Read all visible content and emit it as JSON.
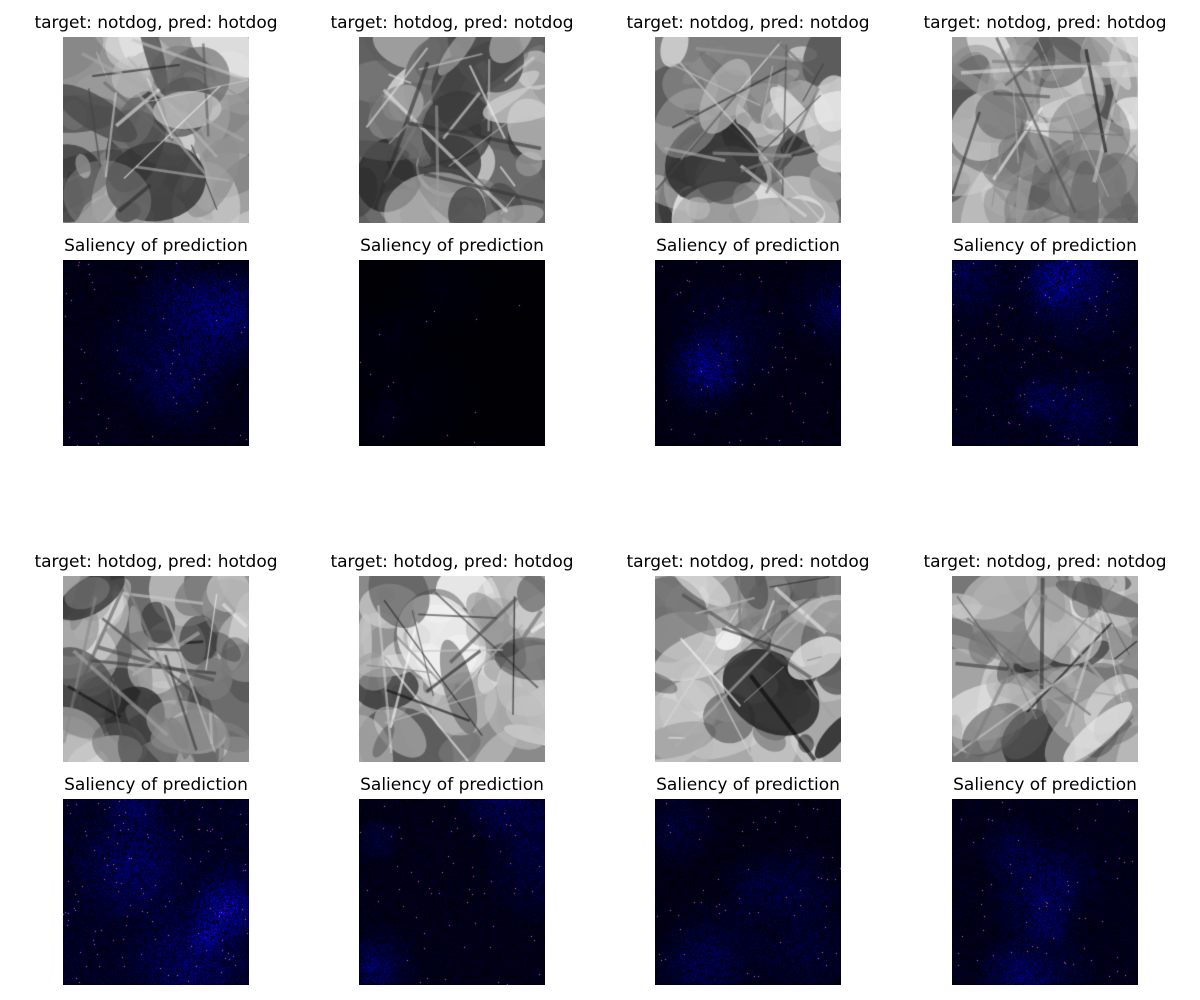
{
  "figure": {
    "rows": [
      {
        "photo_titles": [
          "target: notdog, pred: hotdog",
          "target: hotdog, pred: notdog",
          "target: notdog, pred: notdog",
          "target: notdog, pred: hotdog"
        ],
        "saliency_titles": [
          "Saliency of prediction",
          "Saliency of prediction",
          "Saliency of prediction",
          "Saliency of prediction"
        ]
      },
      {
        "photo_titles": [
          "target: hotdog, pred: hotdog",
          "target: hotdog, pred: hotdog",
          "target: notdog, pred: notdog",
          "target: notdog, pred: notdog"
        ],
        "saliency_titles": [
          "Saliency of prediction",
          "Saliency of prediction",
          "Saliency of prediction",
          "Saliency of prediction"
        ]
      }
    ],
    "colors": {
      "saliency_dark": "#000000",
      "saliency_mid": "#0000ff",
      "saliency_hot": "#ff00ff"
    }
  }
}
